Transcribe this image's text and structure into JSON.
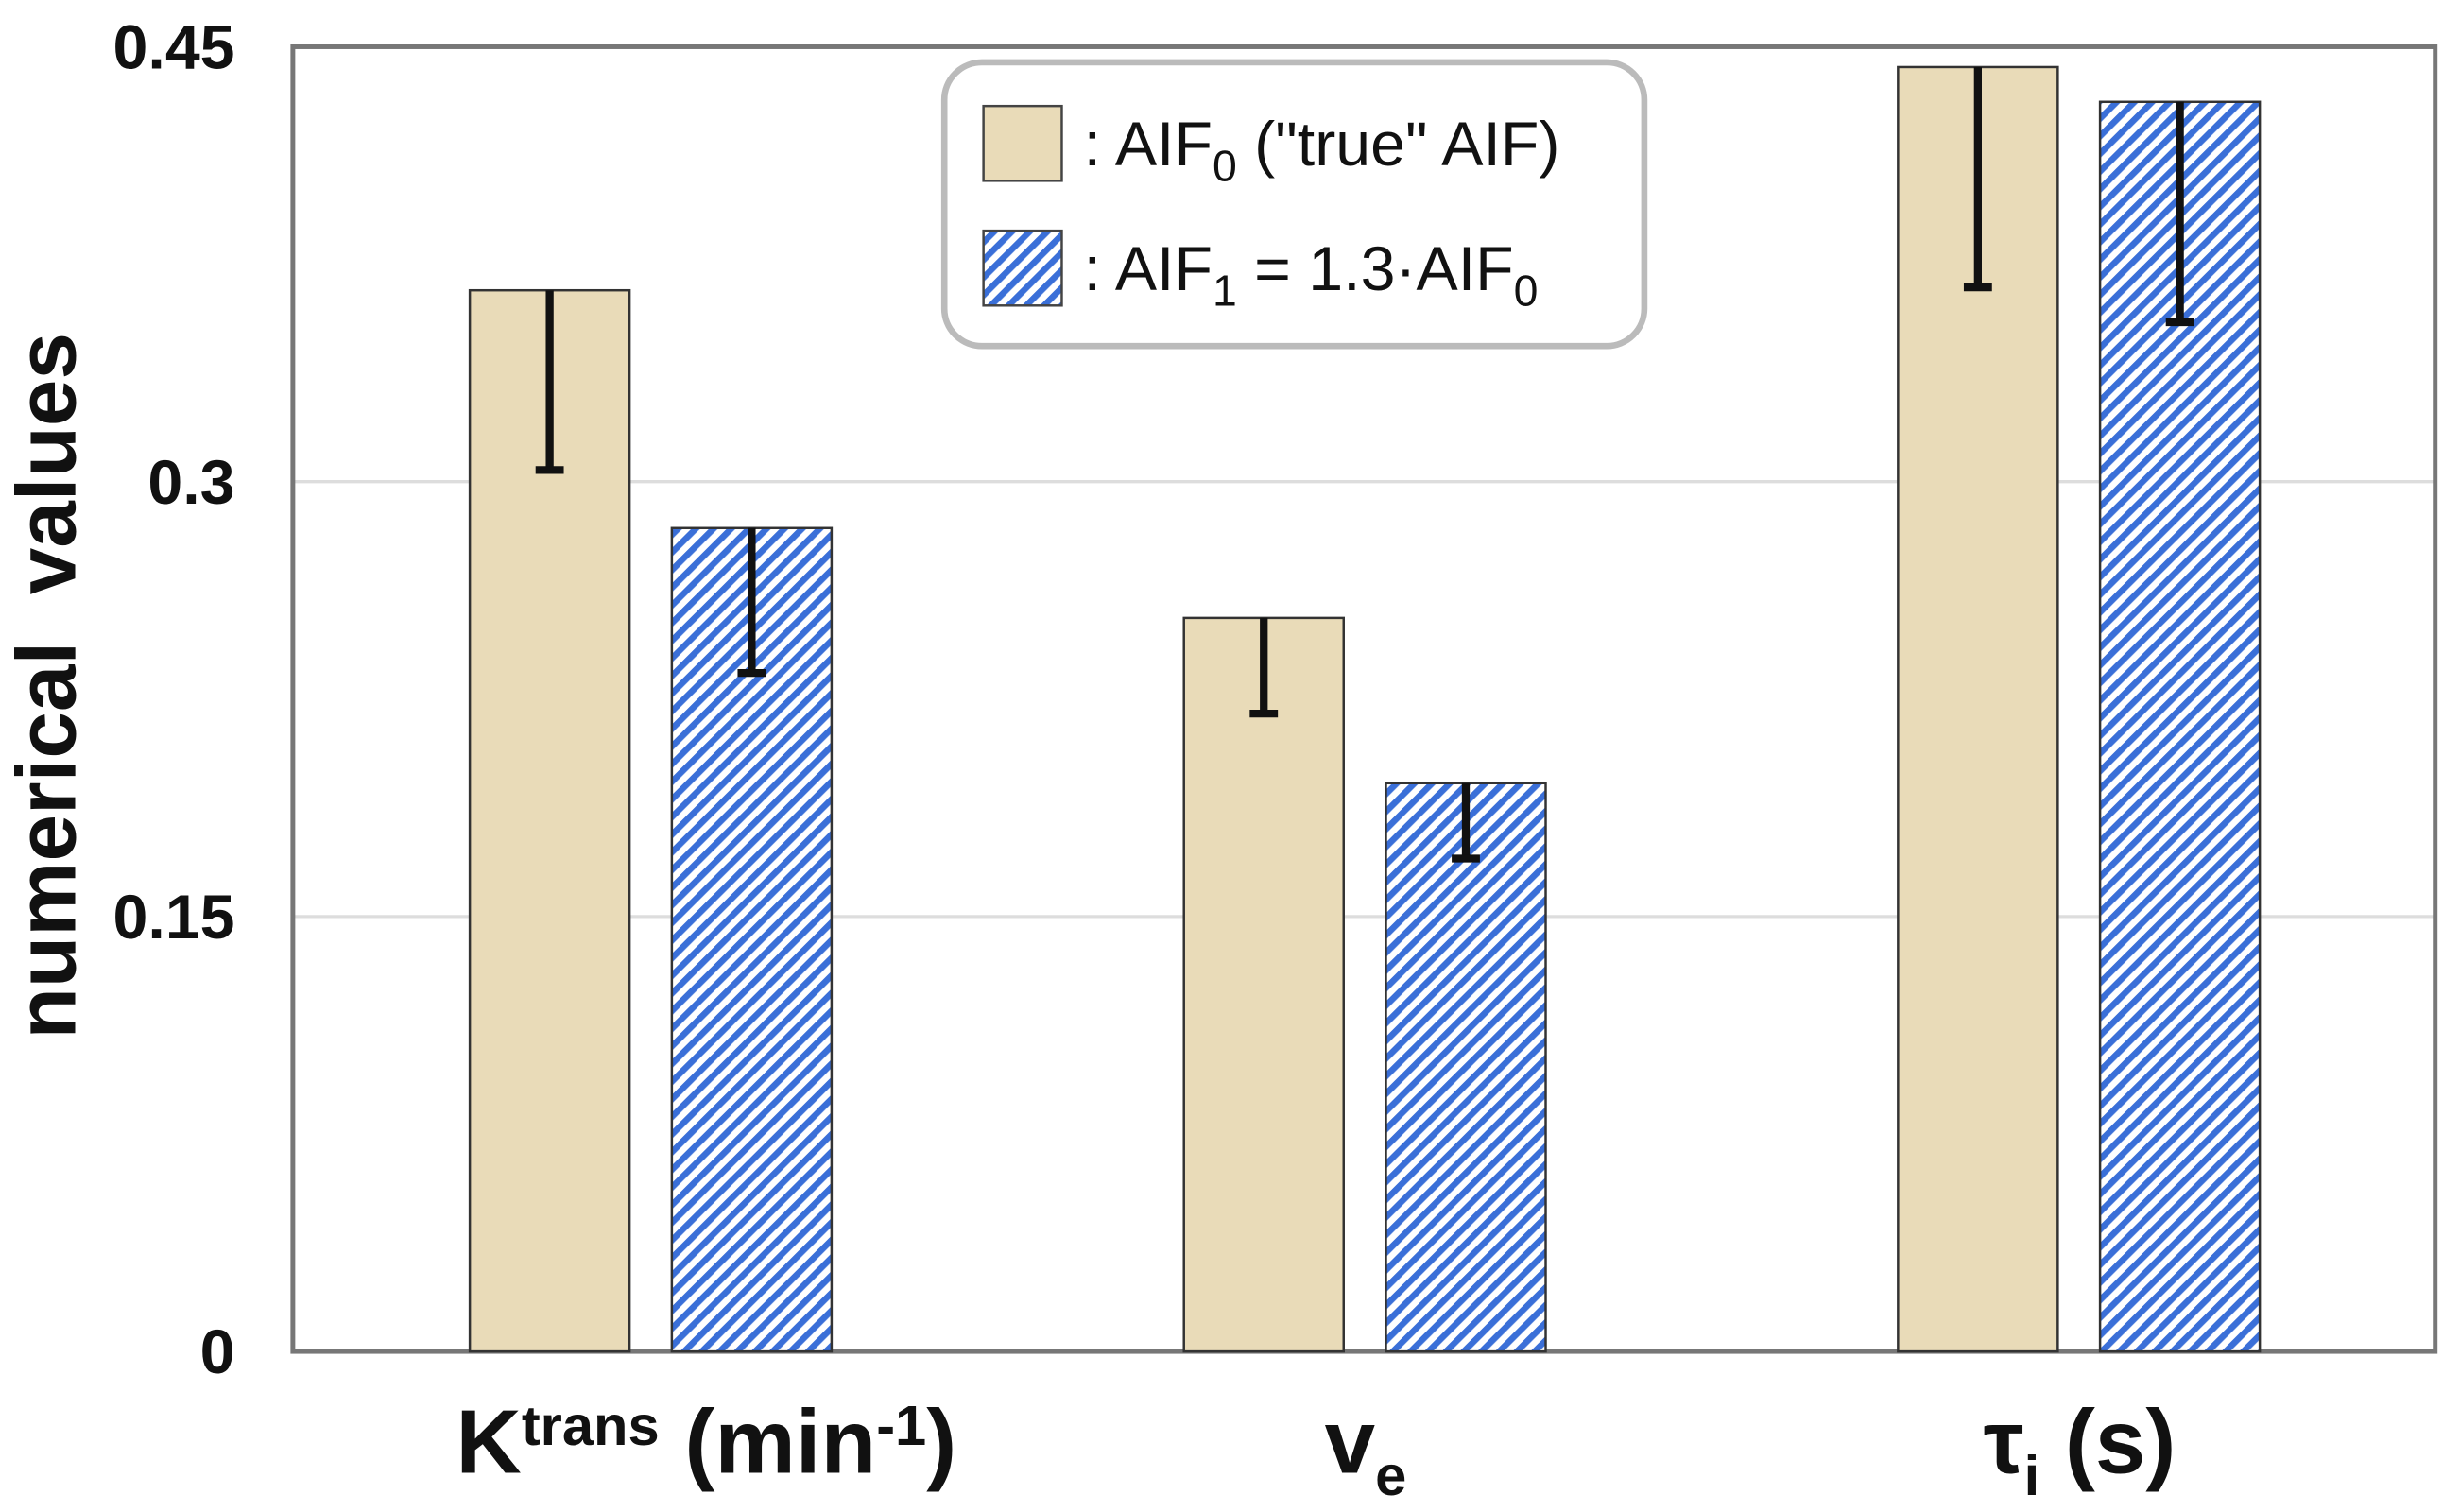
{
  "chart_data": {
    "type": "bar",
    "title": "",
    "xlabel": "",
    "ylabel": "numerical  values",
    "ylim": [
      0,
      0.45
    ],
    "yticks": [
      "0",
      "0.15",
      "0.3",
      "0.45"
    ],
    "ytick_values": [
      0,
      0.15,
      0.3,
      0.45
    ],
    "grid": true,
    "legend_placement": "top-center",
    "categories": [
      {
        "base": "K",
        "sup": "trans",
        "rest": " (min",
        "sup2": "-1",
        "end": ")"
      },
      {
        "base": "v",
        "sub": "e"
      },
      {
        "base": "τ",
        "sub": "i",
        "rest": " (s)"
      }
    ],
    "series": [
      {
        "name": "AIF0 (\"true\" AIF)",
        "legend": {
          "prefix": ": AIF",
          "sub": "0",
          "suffix": " (\"true\" AIF)"
        },
        "values": [
          0.366,
          0.253,
          0.443
        ],
        "error_lower": [
          0.304,
          0.22,
          0.367
        ],
        "color": "#e9dbb8",
        "pattern": "solid"
      },
      {
        "name": "AIF1 = 1.3·AIF0",
        "legend": {
          "prefix": ": AIF",
          "sub": "1",
          "suffix": " = 1.3·AIF",
          "sub2": "0"
        },
        "values": [
          0.284,
          0.196,
          0.431
        ],
        "error_lower": [
          0.234,
          0.17,
          0.355
        ],
        "color": "#3a6fd8",
        "pattern": "hatch"
      }
    ]
  }
}
